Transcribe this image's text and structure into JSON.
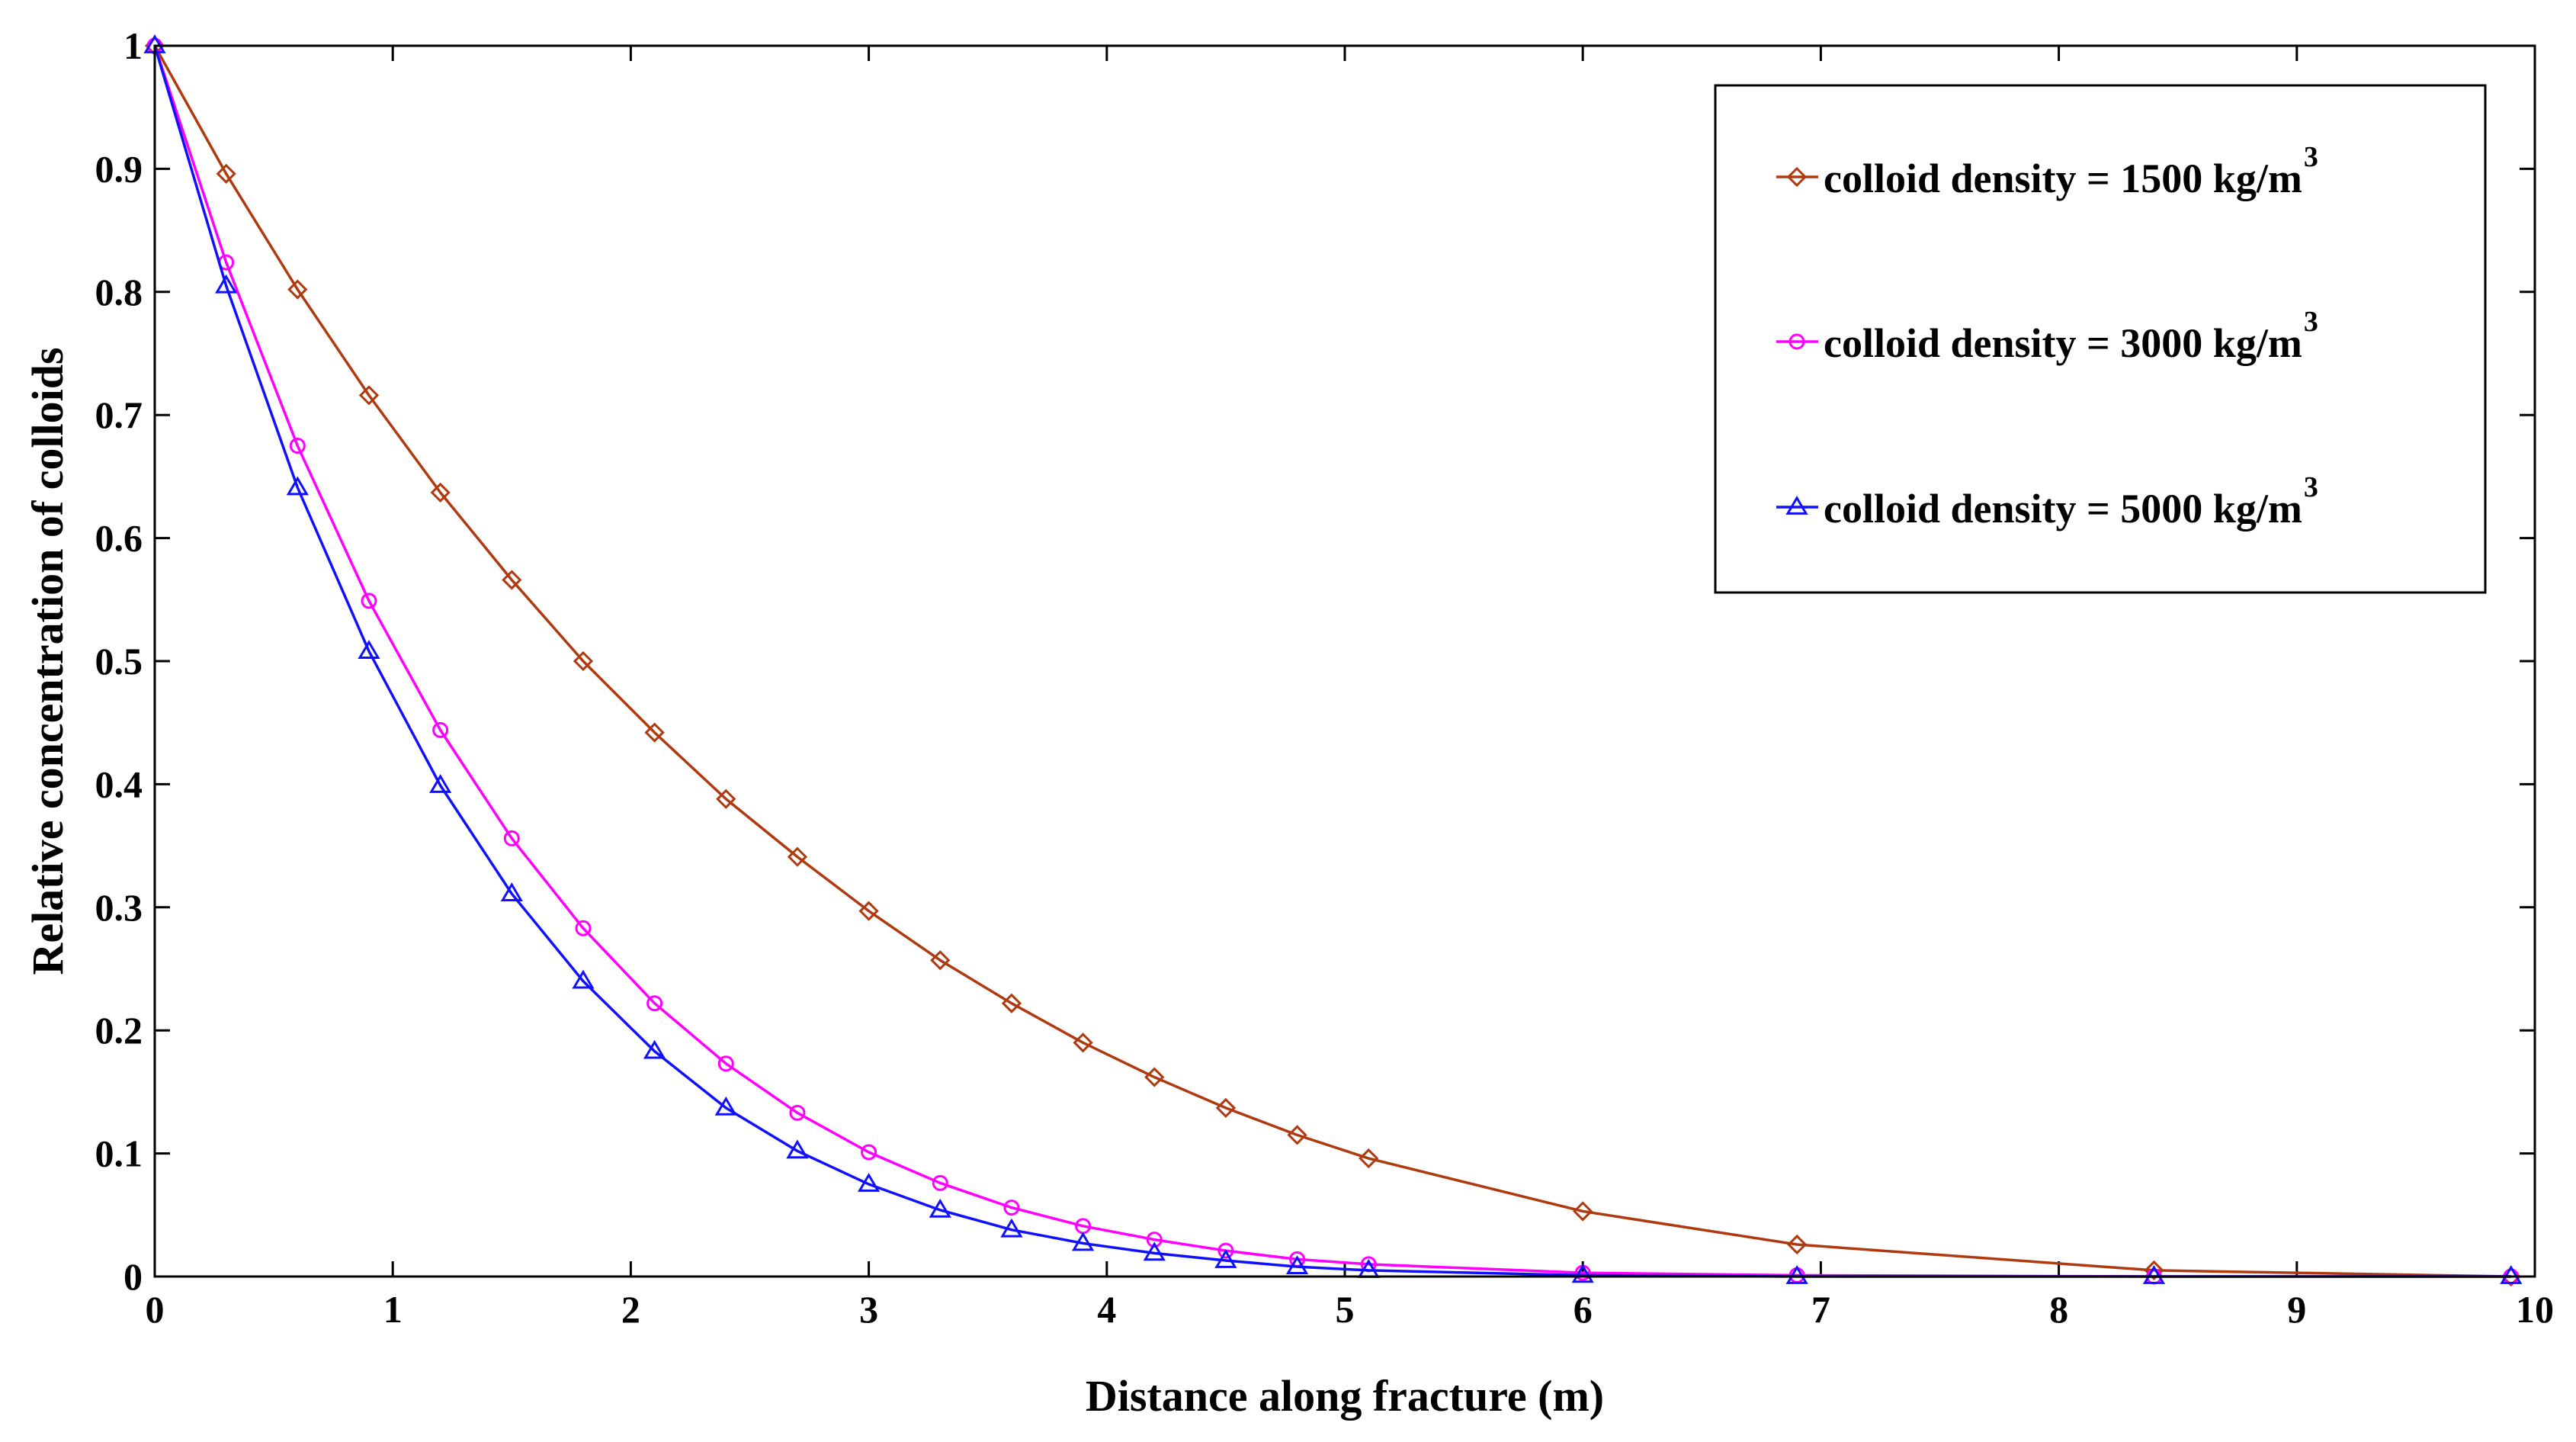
{
  "chart_data": {
    "type": "line",
    "title": "",
    "xlabel": "Distance along fracture (m)",
    "ylabel": "Relative concentration of colloids",
    "xlim": [
      0,
      10
    ],
    "ylim": [
      0,
      1
    ],
    "xticks": [
      0,
      1,
      2,
      3,
      4,
      5,
      6,
      7,
      8,
      9,
      10
    ],
    "yticks": [
      0,
      0.1,
      0.2,
      0.3,
      0.4,
      0.5,
      0.6,
      0.7,
      0.8,
      0.9,
      1
    ],
    "xtick_labels": [
      "0",
      "1",
      "2",
      "3",
      "4",
      "5",
      "6",
      "7",
      "8",
      "9",
      "10"
    ],
    "ytick_labels": [
      "0",
      "0.1",
      "0.2",
      "0.3",
      "0.4",
      "0.5",
      "0.6",
      "0.7",
      "0.8",
      "0.9",
      "1"
    ],
    "grid": false,
    "legend_position": "top-right",
    "series": [
      {
        "name": "colloid density = 1500 kg/m",
        "superscript": "3",
        "color": "#B03A10",
        "marker": "diamond",
        "x": [
          0,
          0.3,
          0.6,
          0.9,
          1.2,
          1.5,
          1.8,
          2.1,
          2.4,
          2.7,
          3.0,
          3.3,
          3.6,
          3.9,
          4.2,
          4.5,
          4.8,
          5.1,
          6.0,
          6.9,
          8.4,
          9.9
        ],
        "y": [
          1.0,
          0.896,
          0.802,
          0.716,
          0.637,
          0.566,
          0.5,
          0.442,
          0.388,
          0.341,
          0.297,
          0.257,
          0.222,
          0.19,
          0.162,
          0.137,
          0.115,
          0.096,
          0.053,
          0.026,
          0.005,
          0.0
        ]
      },
      {
        "name": "colloid density = 3000 kg/m",
        "superscript": "3",
        "color": "#FF00FF",
        "marker": "circle",
        "x": [
          0,
          0.3,
          0.6,
          0.9,
          1.2,
          1.5,
          1.8,
          2.1,
          2.4,
          2.7,
          3.0,
          3.3,
          3.6,
          3.9,
          4.2,
          4.5,
          4.8,
          5.1,
          6.0,
          6.9,
          8.4,
          9.9
        ],
        "y": [
          1.0,
          0.824,
          0.675,
          0.549,
          0.444,
          0.356,
          0.283,
          0.222,
          0.173,
          0.133,
          0.101,
          0.076,
          0.056,
          0.041,
          0.03,
          0.021,
          0.014,
          0.01,
          0.003,
          0.001,
          0.0,
          0.0
        ]
      },
      {
        "name": "colloid density = 5000 kg/m",
        "superscript": "3",
        "color": "#1010FF",
        "marker": "triangle",
        "x": [
          0,
          0.3,
          0.6,
          0.9,
          1.2,
          1.5,
          1.8,
          2.1,
          2.4,
          2.7,
          3.0,
          3.3,
          3.6,
          3.9,
          4.2,
          4.5,
          4.8,
          5.1,
          6.0,
          6.9,
          8.4,
          9.9
        ],
        "y": [
          1.0,
          0.805,
          0.641,
          0.508,
          0.399,
          0.311,
          0.24,
          0.183,
          0.137,
          0.102,
          0.075,
          0.054,
          0.038,
          0.027,
          0.019,
          0.013,
          0.008,
          0.005,
          0.001,
          0.0,
          0.0,
          0.0
        ]
      }
    ]
  }
}
